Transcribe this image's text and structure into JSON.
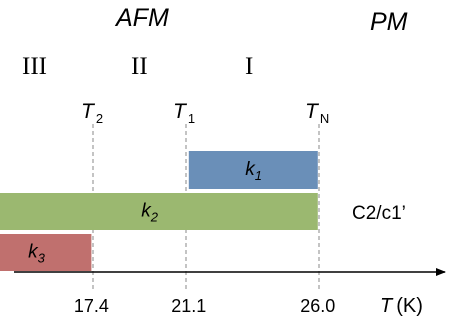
{
  "phases": {
    "afm": "AFM",
    "pm": "PM"
  },
  "regions": {
    "iii": "III",
    "ii": "II",
    "i": "I"
  },
  "transitions": {
    "t2": {
      "symbol": "T",
      "subscript": "2"
    },
    "t1": {
      "symbol": "T",
      "subscript": "1"
    },
    "tn": {
      "symbol": "T",
      "subscript": "N"
    }
  },
  "space_group": "C2/c1’",
  "axis": {
    "symbol": "T",
    "unit": "(K)"
  },
  "chart_data": {
    "type": "bar",
    "orientation": "horizontal",
    "x_ticks": [
      "17.4",
      "21.1",
      "26.0"
    ],
    "x_tick_values": [
      17.4,
      21.1,
      26.0
    ],
    "bars": [
      {
        "name_symbol": "k",
        "name_subscript": "1",
        "color": "#6a8fb8",
        "x_start": 21.1,
        "x_end": 26.0
      },
      {
        "name_symbol": "k",
        "name_subscript": "2",
        "color": "#9bb870",
        "x_start": 13.2,
        "x_end": 26.0
      },
      {
        "name_symbol": "k",
        "name_subscript": "3",
        "color": "#c0706e",
        "x_start": 13.2,
        "x_end": 17.4
      }
    ]
  }
}
